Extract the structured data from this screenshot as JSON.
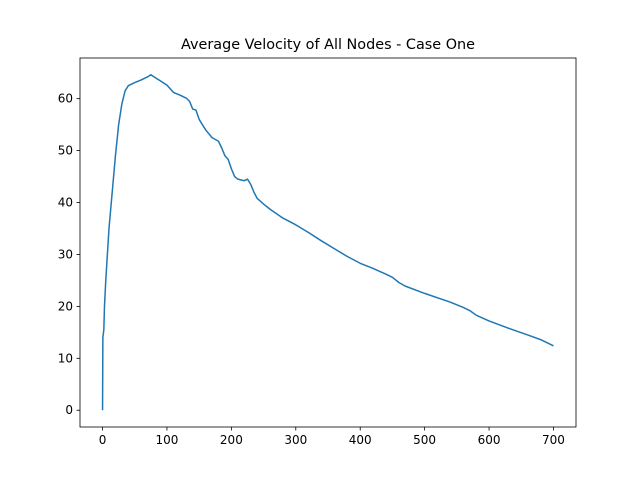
{
  "chart_data": {
    "type": "line",
    "title": "Average Velocity of All Nodes - Case One",
    "x": [
      0,
      0.5,
      2,
      3,
      5,
      10,
      15,
      20,
      25,
      30,
      35,
      40,
      50,
      60,
      70,
      75,
      80,
      90,
      100,
      110,
      120,
      130,
      135,
      140,
      145,
      150,
      160,
      170,
      180,
      185,
      190,
      195,
      200,
      205,
      210,
      220,
      225,
      230,
      235,
      240,
      250,
      260,
      280,
      300,
      320,
      340,
      360,
      380,
      400,
      420,
      440,
      450,
      460,
      470,
      500,
      540,
      560,
      570,
      580,
      600,
      630,
      660,
      680,
      700
    ],
    "values": [
      0,
      14,
      15.5,
      20,
      25,
      35,
      42,
      49,
      55,
      59,
      61.5,
      62.5,
      63.1,
      63.6,
      64.2,
      64.6,
      64.2,
      63.4,
      62.6,
      61.2,
      60.7,
      60.1,
      59.5,
      58,
      57.8,
      56,
      54,
      52.5,
      51.8,
      50.5,
      49,
      48.3,
      46.5,
      45,
      44.5,
      44.2,
      44.5,
      43.5,
      42,
      40.8,
      39.7,
      38.7,
      37,
      35.7,
      34.2,
      32.6,
      31.1,
      29.6,
      28.3,
      27.3,
      26.2,
      25.6,
      24.6,
      23.9,
      22.5,
      20.8,
      19.8,
      19.2,
      18.3,
      17.2,
      15.8,
      14.5,
      13.6,
      12.4
    ],
    "color": "#1f77b4",
    "xlim": [
      -35,
      735
    ],
    "ylim": [
      -3.23,
      67.83
    ],
    "xticks": [
      0,
      100,
      200,
      300,
      400,
      500,
      600,
      700
    ],
    "yticks": [
      0,
      10,
      20,
      30,
      40,
      50,
      60
    ]
  }
}
